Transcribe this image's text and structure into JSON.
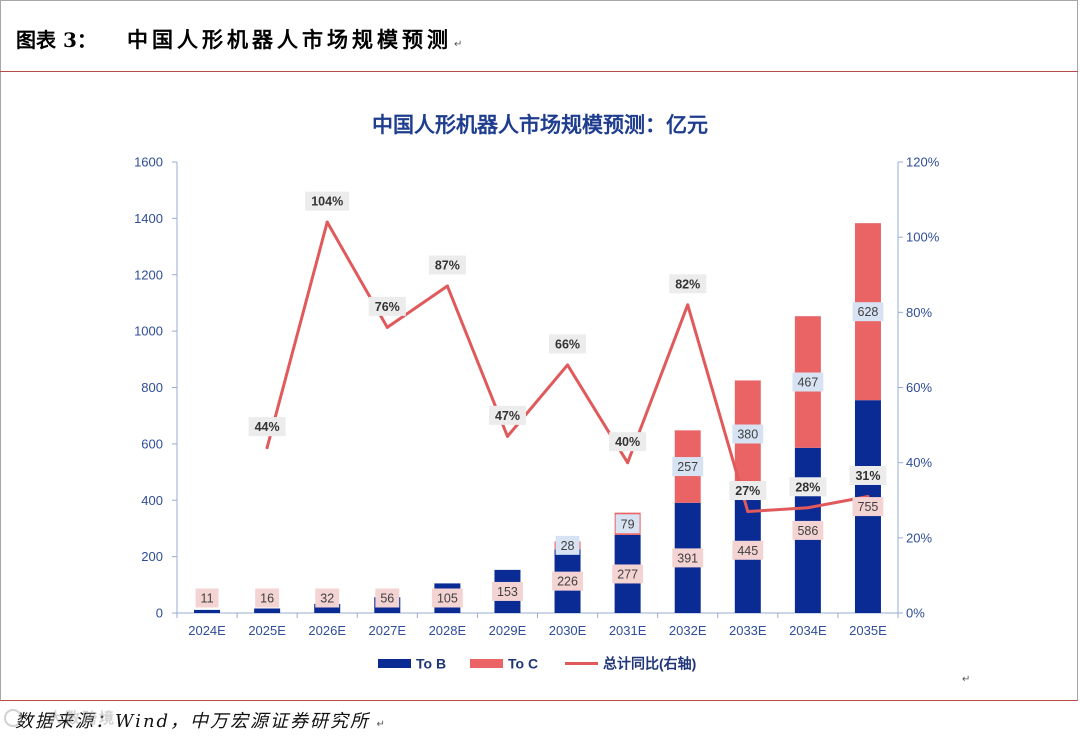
{
  "header": {
    "figure_label": "图表 3：",
    "figure_title": "中国人形机器人市场规模预测",
    "para_mark": "↵"
  },
  "chart_data": {
    "type": "bar",
    "stacked": true,
    "title": "中国人形机器人市场规模预测：亿元",
    "title_color": "#1f3d8f",
    "axis_text_color": "#2f4d99",
    "axis_line_color": "#98acd3",
    "categories": [
      "2024E",
      "2025E",
      "2026E",
      "2027E",
      "2028E",
      "2029E",
      "2030E",
      "2031E",
      "2032E",
      "2033E",
      "2034E",
      "2035E"
    ],
    "series": [
      {
        "name": "To B",
        "type": "bar",
        "axis": "left",
        "color": "#0a2a94",
        "label_fill": "#f3d4d3",
        "values": [
          11,
          16,
          32,
          56,
          105,
          153,
          226,
          277,
          391,
          445,
          586,
          755
        ]
      },
      {
        "name": "To C",
        "type": "bar",
        "axis": "left",
        "color": "#eb6465",
        "label_fill": "#d7e3f3",
        "values": [
          0,
          0,
          0,
          0,
          0,
          0,
          28,
          79,
          257,
          380,
          467,
          628
        ]
      },
      {
        "name": "总计同比(右轴)",
        "type": "line",
        "axis": "right",
        "color": "#e05a5c",
        "label_fill": "#ececec",
        "value_suffix": "%",
        "values": [
          null,
          44,
          104,
          76,
          87,
          47,
          66,
          40,
          82,
          27,
          28,
          31
        ]
      }
    ],
    "y_left": {
      "min": 0,
      "max": 1600,
      "ticks": [
        0,
        200,
        400,
        600,
        800,
        1000,
        1200,
        1400,
        1600
      ]
    },
    "y_right": {
      "min": 0,
      "max": 120,
      "ticks": [
        0,
        20,
        40,
        60,
        80,
        100,
        120
      ],
      "tick_suffix": "%"
    },
    "grid": false,
    "legend": "bottom"
  },
  "chart_para_mark": "↵",
  "footer": {
    "source": "数据来源：Wind，中万宏源证券研究所",
    "para_mark": "↵"
  },
  "watermark": {
    "text": "大数跨境"
  }
}
